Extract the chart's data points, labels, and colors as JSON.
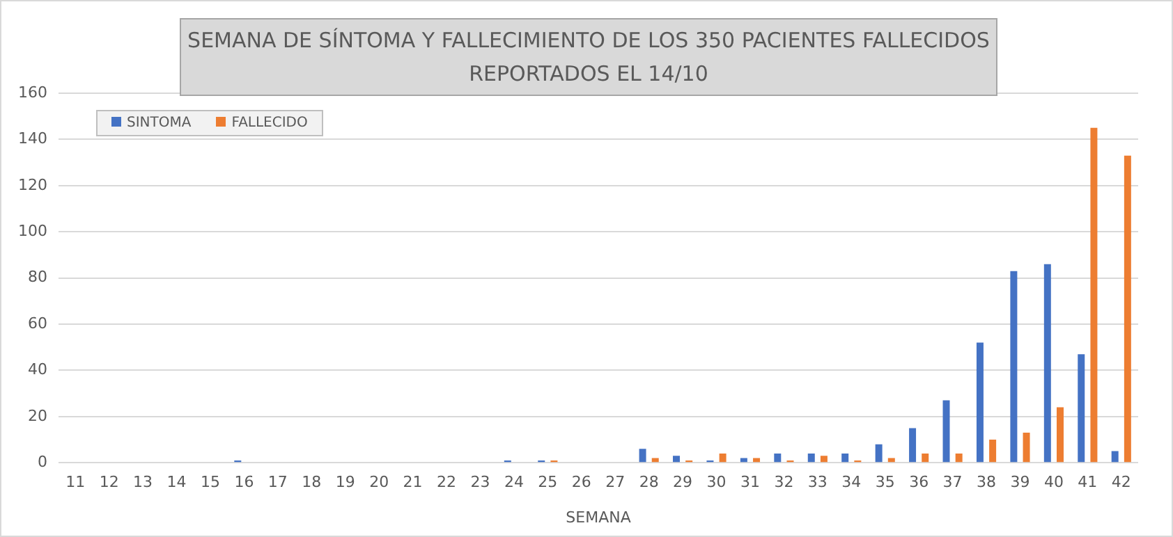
{
  "chart_data": {
    "type": "bar",
    "title": "SEMANA DE SÍNTOMA Y FALLECIMIENTO DE LOS 350 PACIENTES FALLECIDOS REPORTADOS EL 14/10",
    "xlabel": "SEMANA",
    "categories": [
      "11",
      "12",
      "13",
      "14",
      "15",
      "16",
      "17",
      "18",
      "19",
      "20",
      "21",
      "22",
      "23",
      "24",
      "25",
      "26",
      "27",
      "28",
      "29",
      "30",
      "31",
      "32",
      "33",
      "34",
      "35",
      "36",
      "37",
      "38",
      "39",
      "40",
      "41",
      "42"
    ],
    "series": [
      {
        "name": "SINTOMA",
        "color": "#4472c4",
        "values": [
          0,
          0,
          0,
          0,
          0,
          1,
          0,
          0,
          0,
          0,
          0,
          0,
          0,
          1,
          1,
          0,
          0,
          6,
          3,
          1,
          2,
          4,
          4,
          4,
          8,
          15,
          27,
          52,
          83,
          86,
          47,
          5
        ]
      },
      {
        "name": "FALLECIDO",
        "color": "#ed7d31",
        "values": [
          0,
          0,
          0,
          0,
          0,
          0,
          0,
          0,
          0,
          0,
          0,
          0,
          0,
          0,
          1,
          0,
          0,
          2,
          1,
          4,
          2,
          1,
          3,
          1,
          2,
          4,
          4,
          10,
          13,
          24,
          145,
          133
        ]
      }
    ],
    "ylim": [
      0,
      160
    ],
    "yticks": [
      0,
      20,
      40,
      60,
      80,
      100,
      120,
      140,
      160
    ],
    "grid": "y",
    "legend": "top left"
  }
}
